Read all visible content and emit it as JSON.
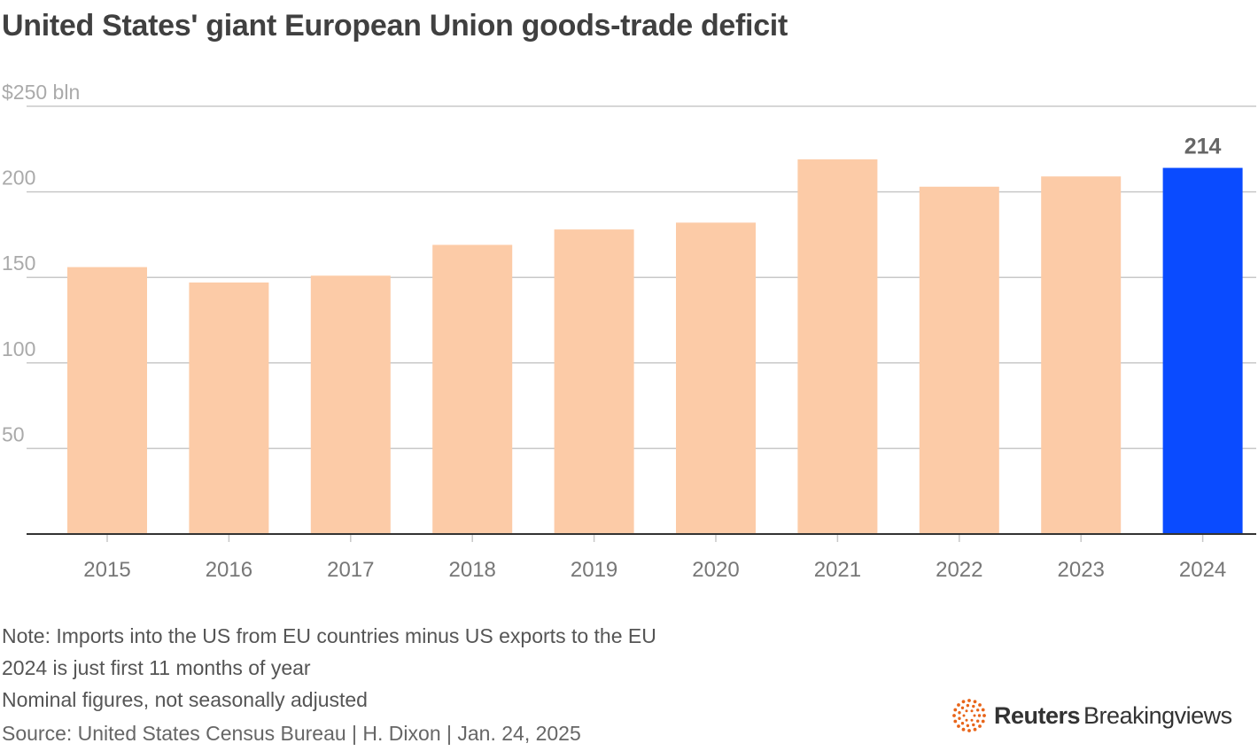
{
  "chart_data": {
    "type": "bar",
    "title": "United States' giant European Union goods-trade deficit",
    "unit_label": "$250 bln",
    "categories": [
      "2015",
      "2016",
      "2017",
      "2018",
      "2019",
      "2020",
      "2021",
      "2022",
      "2023",
      "2024"
    ],
    "values": [
      156,
      147,
      151,
      169,
      178,
      182,
      219,
      203,
      209,
      214
    ],
    "highlight_index": 9,
    "highlight_label": "214",
    "ylim": [
      0,
      250
    ],
    "yticks": [
      50,
      100,
      150,
      200,
      250
    ],
    "ytick_labels": [
      "50",
      "100",
      "150",
      "200",
      "$250 bln"
    ],
    "colors": {
      "bar": "#FCCBA7",
      "highlight": "#0A4BFF",
      "grid": "#C8C8C8",
      "axis": "#333333",
      "tick_label": "#AAAAAA",
      "x_label": "#777777"
    }
  },
  "notes": [
    "Note: Imports into the US from EU countries minus US exports to the EU",
    "2024 is just first 11 months of year",
    "Nominal figures, not seasonally adjusted"
  ],
  "source": "Source: United States Census Bureau | H. Dixon | Jan. 24, 2025",
  "brand": {
    "name": "Reuters",
    "sub": "Breakingviews",
    "logo_icon": "reuters-dots-logo",
    "logo_color": "#E8651A"
  }
}
